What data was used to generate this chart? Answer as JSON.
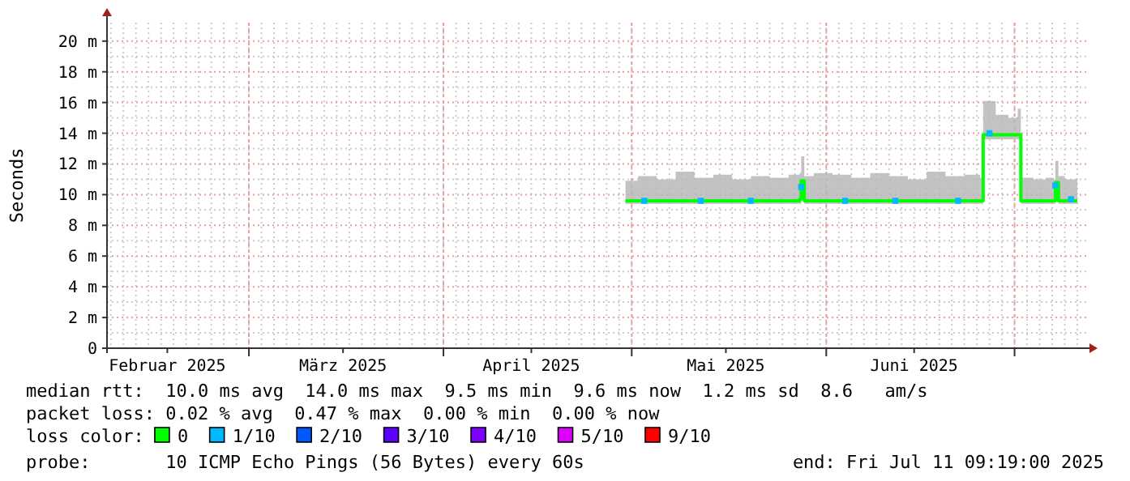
{
  "chart_data": {
    "type": "line",
    "ylabel": "Seconds",
    "legend_title": "loss color:",
    "legend": "bottom",
    "grid": true,
    "xlim": [
      "2025-02-06T09:19",
      "2025-07-11T09:19"
    ],
    "xticks": [
      {
        "value": "2025-02-16",
        "label": "Februar 2025"
      },
      {
        "value": "2025-03-01",
        "label": null
      },
      {
        "value": "2025-03-16",
        "label": "März 2025"
      },
      {
        "value": "2025-04-01",
        "label": null
      },
      {
        "value": "2025-04-15",
        "label": "April 2025"
      },
      {
        "value": "2025-05-01",
        "label": null
      },
      {
        "value": "2025-05-16",
        "label": "Mai 2025"
      },
      {
        "value": "2025-06-01",
        "label": null
      },
      {
        "value": "2025-06-15",
        "label": "Juni 2025"
      },
      {
        "value": "2025-07-01",
        "label": null
      }
    ],
    "ylim": [
      0,
      21.2
    ],
    "yticks": [
      0,
      {
        "value": 2,
        "label": "2 m"
      },
      {
        "value": 4,
        "label": "4 m"
      },
      {
        "value": 6,
        "label": "6 m"
      },
      {
        "value": 8,
        "label": "8 m"
      },
      {
        "value": 10,
        "label": "10 m"
      },
      {
        "value": 12,
        "label": "12 m"
      },
      {
        "value": 14,
        "label": "14 m"
      },
      {
        "value": 16,
        "label": "16 m"
      },
      {
        "value": 18,
        "label": "18 m"
      },
      {
        "value": 20,
        "label": "20 m"
      }
    ],
    "series": [
      {
        "name": "0",
        "color": "#00ff00",
        "x": [
          "2025-04-30",
          "2025-05-02",
          "2025-05-05",
          "2025-05-08",
          "2025-05-11",
          "2025-05-14",
          "2025-05-17",
          "2025-05-20",
          "2025-05-23",
          "2025-05-26",
          "2025-05-27T18:00",
          "2025-05-28",
          "2025-05-28T12:00",
          "2025-05-30",
          "2025-06-02",
          "2025-06-05",
          "2025-06-08",
          "2025-06-11",
          "2025-06-14",
          "2025-06-17",
          "2025-06-20",
          "2025-06-23",
          "2025-06-25T12:00",
          "2025-06-26",
          "2025-06-28",
          "2025-06-30",
          "2025-07-01T12:00",
          "2025-07-02",
          "2025-07-04",
          "2025-07-06",
          "2025-07-07T06:00",
          "2025-07-07T12:00",
          "2025-07-08",
          "2025-07-09",
          "2025-07-11"
        ],
        "values": [
          9.6,
          9.6,
          9.6,
          9.6,
          9.6,
          9.6,
          9.6,
          9.6,
          9.6,
          9.6,
          9.7,
          10.9,
          9.6,
          9.6,
          9.6,
          9.6,
          9.6,
          9.6,
          9.6,
          9.6,
          9.6,
          9.6,
          9.6,
          13.9,
          13.9,
          13.9,
          13.9,
          9.6,
          9.6,
          9.6,
          9.6,
          10.8,
          9.6,
          9.6,
          9.6
        ],
        "lower": [
          9.4,
          9.4,
          9.4,
          9.4,
          9.4,
          9.4,
          9.4,
          9.4,
          9.4,
          9.4,
          9.4,
          9.8,
          9.4,
          9.4,
          9.4,
          9.4,
          9.4,
          9.4,
          9.4,
          9.4,
          9.4,
          9.4,
          9.4,
          13.6,
          13.6,
          13.6,
          13.6,
          9.4,
          9.4,
          9.4,
          9.4,
          9.8,
          9.4,
          9.4,
          9.4
        ],
        "upper": [
          10.9,
          11.2,
          11.0,
          11.5,
          11.1,
          11.3,
          11.0,
          11.2,
          11.1,
          11.3,
          11.4,
          12.5,
          11.2,
          11.4,
          11.3,
          11.1,
          11.4,
          11.2,
          11.0,
          11.5,
          11.2,
          11.3,
          11.1,
          16.1,
          15.2,
          15.0,
          15.6,
          11.1,
          11.0,
          11.1,
          11.0,
          12.2,
          11.2,
          11.0,
          11.1
        ]
      },
      {
        "name": "1/10",
        "type": "scatter",
        "color": "#00b8ff",
        "marker": "square",
        "x": [
          "2025-05-03",
          "2025-05-12",
          "2025-05-20",
          "2025-05-28",
          "2025-06-04",
          "2025-06-12",
          "2025-06-22",
          "2025-06-27",
          "2025-07-07T12:00",
          "2025-07-10"
        ],
        "values": [
          9.6,
          9.6,
          9.6,
          10.5,
          9.6,
          9.6,
          9.6,
          14.0,
          10.6,
          9.7
        ]
      },
      {
        "name": "2/10",
        "type": "scatter",
        "color": "#0059ff",
        "marker": "square"
      },
      {
        "name": "3/10",
        "type": "scatter",
        "color": "#5e00ff",
        "marker": "square"
      },
      {
        "name": "4/10",
        "type": "scatter",
        "color": "#7e00ff",
        "marker": "square"
      },
      {
        "name": "5/10",
        "type": "scatter",
        "color": "#dd00ff",
        "marker": "square"
      },
      {
        "name": "9/10",
        "type": "scatter",
        "color": "#ff0000",
        "marker": "square"
      }
    ],
    "annotations": [
      "median rtt:  10.0 ms avg  14.0 ms max  9.5 ms min  9.6 ms now  1.2 ms sd  8.6   am/s",
      "packet loss: 0.02 % avg  0.47 % max  0.00 % min  0.00 % now",
      "probe:       10 ICMP Echo Pings (56 Bytes) every 60s",
      "end: Fri Jul 11 09:19:00 2025"
    ]
  }
}
